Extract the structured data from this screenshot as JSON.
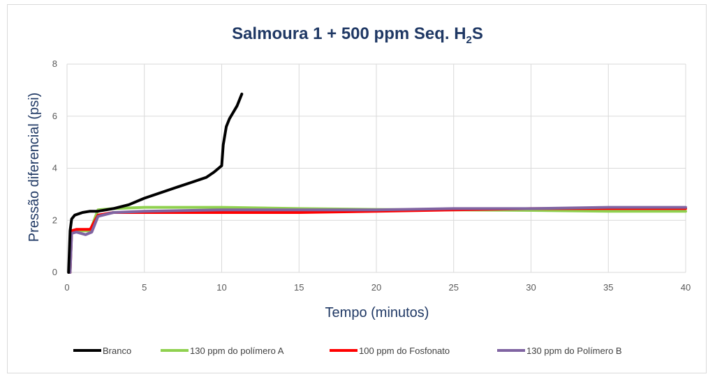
{
  "chart_data": {
    "type": "line",
    "title": "Salmoura 1 + 500 ppm Seq. H",
    "title_sub": "2",
    "title_suffix": "S",
    "xlabel": "Tempo (minutos)",
    "ylabel": "Pressão diferencial  (psi)",
    "xlim": [
      0,
      40
    ],
    "ylim": [
      0,
      8
    ],
    "xticks": [
      0,
      5,
      10,
      15,
      20,
      25,
      30,
      35,
      40
    ],
    "yticks": [
      0,
      2,
      4,
      6,
      8
    ],
    "grid": true,
    "legend_position": "bottom",
    "series": [
      {
        "name": "Branco",
        "color": "#000000",
        "x": [
          0.1,
          0.2,
          0.3,
          0.5,
          1,
          1.5,
          2,
          3,
          4,
          5,
          6,
          7,
          8,
          9,
          9.5,
          10,
          10.1,
          10.3,
          10.5,
          11,
          11.3
        ],
        "y": [
          0,
          1.6,
          2.05,
          2.2,
          2.3,
          2.35,
          2.35,
          2.45,
          2.6,
          2.85,
          3.05,
          3.25,
          3.45,
          3.65,
          3.85,
          4.1,
          4.9,
          5.6,
          5.9,
          6.4,
          6.85
        ]
      },
      {
        "name": "130 ppm do polímero A",
        "color": "#8fd14f",
        "x": [
          0.2,
          0.3,
          0.5,
          1.5,
          2,
          3,
          5,
          10,
          15,
          20,
          25,
          30,
          35,
          40
        ],
        "y": [
          0,
          1.6,
          1.6,
          1.6,
          2.4,
          2.45,
          2.5,
          2.5,
          2.45,
          2.42,
          2.4,
          2.38,
          2.35,
          2.35
        ]
      },
      {
        "name": "100 ppm do Fosfonato",
        "color": "#ff0000",
        "x": [
          0.2,
          0.3,
          0.6,
          1.5,
          2,
          3,
          5,
          10,
          15,
          20,
          25,
          30,
          35,
          40
        ],
        "y": [
          0,
          1.6,
          1.65,
          1.65,
          2.2,
          2.3,
          2.3,
          2.3,
          2.3,
          2.35,
          2.4,
          2.45,
          2.45,
          2.45
        ]
      },
      {
        "name": "130 ppm do Polímero B",
        "color": "#8064a2",
        "x": [
          0.2,
          0.3,
          0.6,
          1.2,
          1.6,
          2,
          3,
          5,
          10,
          15,
          20,
          25,
          30,
          35,
          40
        ],
        "y": [
          0,
          1.5,
          1.55,
          1.45,
          1.55,
          2.15,
          2.3,
          2.35,
          2.4,
          2.4,
          2.4,
          2.45,
          2.45,
          2.5,
          2.5
        ]
      }
    ]
  }
}
